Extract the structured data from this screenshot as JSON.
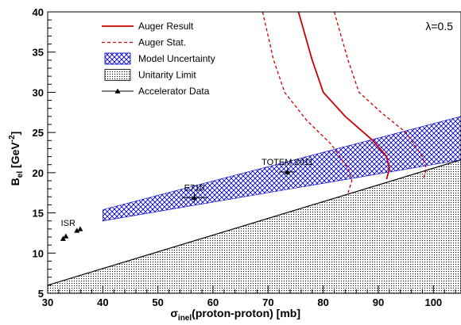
{
  "chart_data": {
    "type": "line",
    "xlabel_main": "σ",
    "xlabel_sub": "inel",
    "xlabel_rest": "(proton-proton)  [mb]",
    "ylabel_main": "B",
    "ylabel_sub": "el",
    "ylabel_rest_a": "  [GeV",
    "ylabel_sup": "-2",
    "ylabel_rest_b": "]",
    "xlim": [
      30,
      105
    ],
    "ylim": [
      5,
      40
    ],
    "x_ticks": [
      30,
      40,
      50,
      60,
      70,
      80,
      90,
      100
    ],
    "y_ticks": [
      5,
      10,
      15,
      20,
      25,
      30,
      35,
      40
    ],
    "annotation": "λ=0.5",
    "legend_position": "top-left",
    "legend": [
      {
        "label": "Auger Result",
        "style": "solid",
        "color": "#cc0000"
      },
      {
        "label": "Auger Stat.",
        "style": "dashed",
        "color": "#cc0000"
      },
      {
        "label": "Model Uncertainty",
        "style": "hatch",
        "color": "#0000cc"
      },
      {
        "label": "Unitarity Limit",
        "style": "dots",
        "color": "#000000"
      },
      {
        "label": "Accelerator Data",
        "style": "marker",
        "color": "#000000"
      }
    ],
    "unitarity_limit": {
      "x": [
        30,
        105
      ],
      "y": [
        6.0,
        21.6
      ]
    },
    "model_band": {
      "x": [
        40,
        105
      ],
      "y_low": [
        14.0,
        21.6
      ],
      "y_high": [
        15.4,
        27.0
      ]
    },
    "auger_result": [
      {
        "x": 75.5,
        "y": 40
      },
      {
        "x": 78.0,
        "y": 34
      },
      {
        "x": 80.0,
        "y": 30
      },
      {
        "x": 84.0,
        "y": 27
      },
      {
        "x": 89.0,
        "y": 24
      },
      {
        "x": 91.5,
        "y": 22
      },
      {
        "x": 92.0,
        "y": 20.5
      },
      {
        "x": 91.5,
        "y": 19.2
      }
    ],
    "auger_stat_low": [
      {
        "x": 69.0,
        "y": 40
      },
      {
        "x": 71.0,
        "y": 34
      },
      {
        "x": 73.0,
        "y": 30
      },
      {
        "x": 77.0,
        "y": 26.5
      },
      {
        "x": 81.5,
        "y": 23.5
      },
      {
        "x": 84.5,
        "y": 20.5
      },
      {
        "x": 85.2,
        "y": 19
      },
      {
        "x": 84.5,
        "y": 17.5
      }
    ],
    "auger_stat_high": [
      {
        "x": 82.0,
        "y": 40
      },
      {
        "x": 84.5,
        "y": 34
      },
      {
        "x": 86.5,
        "y": 30
      },
      {
        "x": 90.5,
        "y": 27.5
      },
      {
        "x": 95.0,
        "y": 25
      },
      {
        "x": 98.0,
        "y": 22
      },
      {
        "x": 98.7,
        "y": 20.5
      },
      {
        "x": 98.2,
        "y": 19.3
      }
    ],
    "accelerator_data": [
      {
        "x": 32.8,
        "y": 11.8
      },
      {
        "x": 33.3,
        "y": 12.1
      },
      {
        "x": 35.3,
        "y": 12.8
      },
      {
        "x": 35.9,
        "y": 13.0
      },
      {
        "x": 56.6,
        "y": 16.9,
        "xerr": 2.3,
        "yerr": 0.6,
        "label": "E710"
      },
      {
        "x": 73.5,
        "y": 20.1,
        "xerr": 1.5,
        "yerr": 0.4,
        "label": "TOTEM 2011"
      }
    ],
    "group_labels": [
      {
        "text": "ISR",
        "x": 32.4,
        "y": 13.4
      }
    ]
  }
}
